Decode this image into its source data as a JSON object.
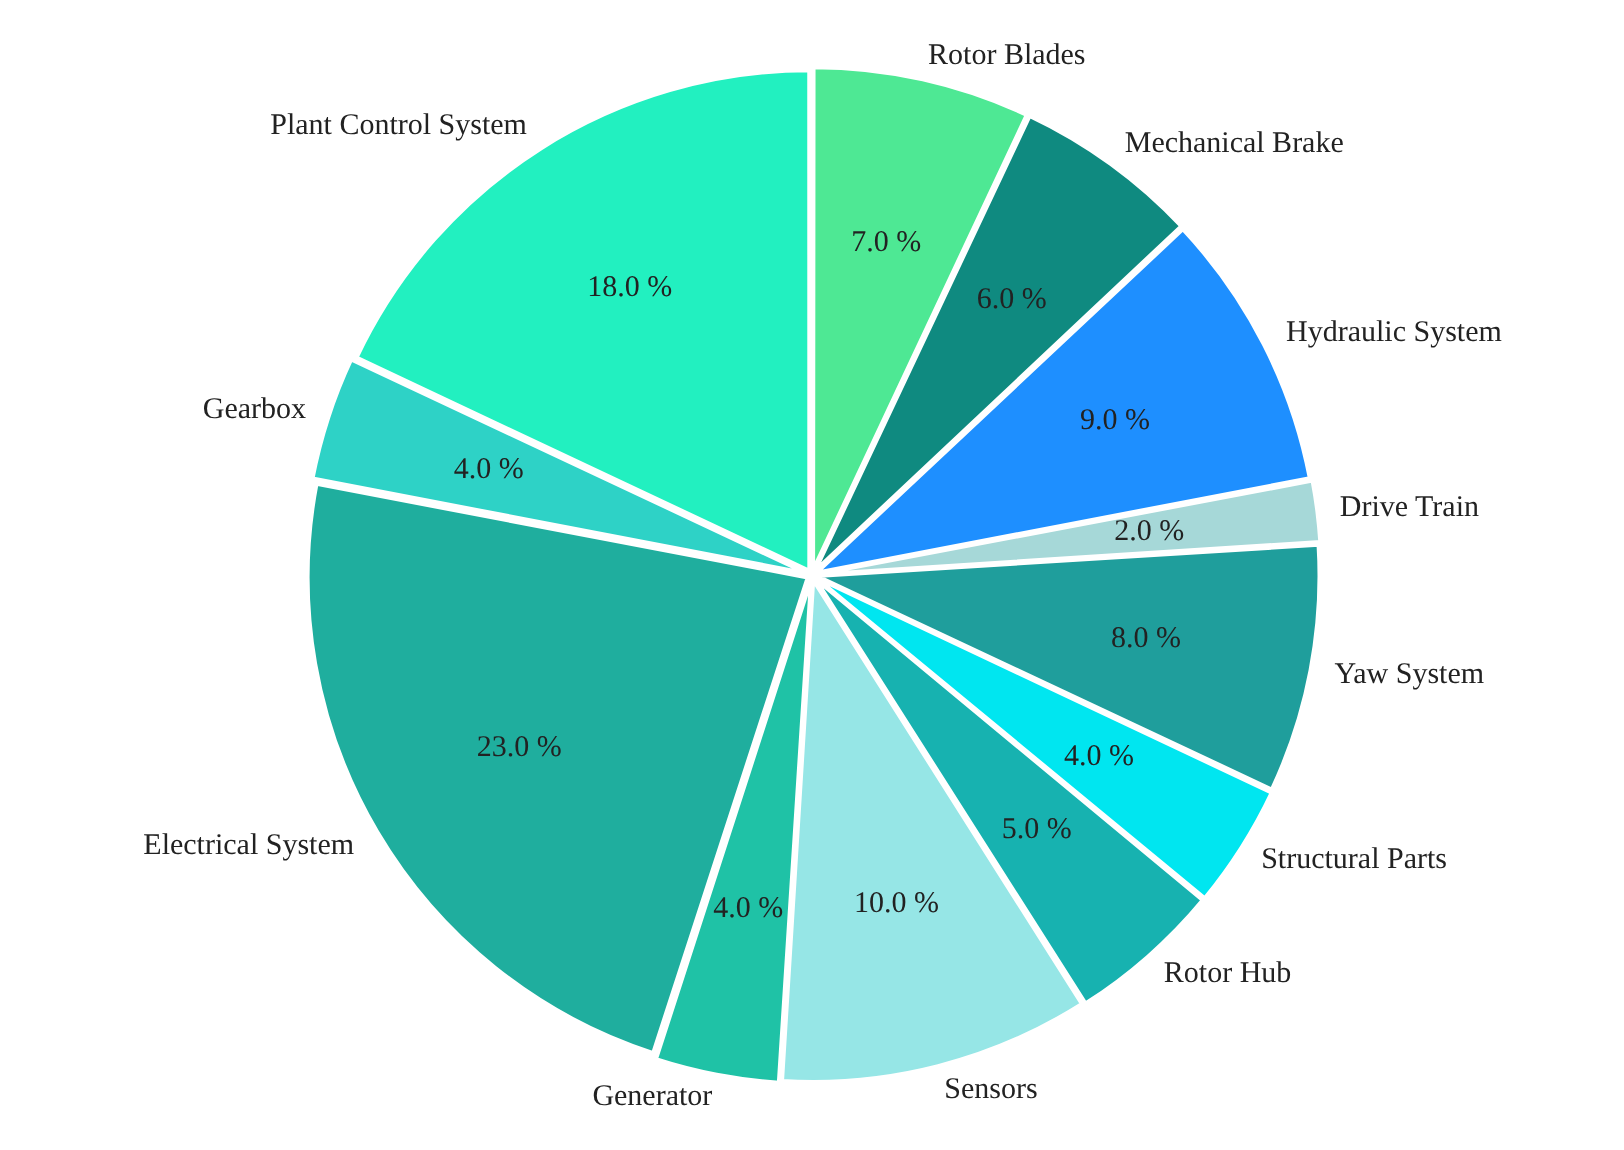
{
  "chart_data": {
    "type": "pie",
    "categories": [
      "Rotor Blades",
      "Mechanical Brake",
      "Hydraulic System",
      "Drive Train",
      "Yaw System",
      "Structural Parts",
      "Rotor Hub",
      "Sensors",
      "Generator",
      "Electrical System",
      "Gearbox",
      "Plant Control System"
    ],
    "values": [
      7,
      6,
      9,
      2,
      8,
      4,
      5,
      10,
      4,
      23,
      4,
      18
    ],
    "value_labels": [
      "7.0 %",
      "6.0 %",
      "9.0 %",
      "2.0 %",
      "8.0 %",
      "4.0 %",
      "5.0 %",
      "10.0 %",
      "4.0 %",
      "23.0 %",
      "4.0 %",
      "18.0 %"
    ],
    "colors": [
      "#4ee894",
      "#0f8a80",
      "#1e8fff",
      "#a6d8d8",
      "#1f9e9c",
      "#00e6f0",
      "#17b2b0",
      "#96e6e6",
      "#1fc2a6",
      "#1fae9e",
      "#2ed2c6",
      "#22f0c0"
    ],
    "legend": false
  }
}
